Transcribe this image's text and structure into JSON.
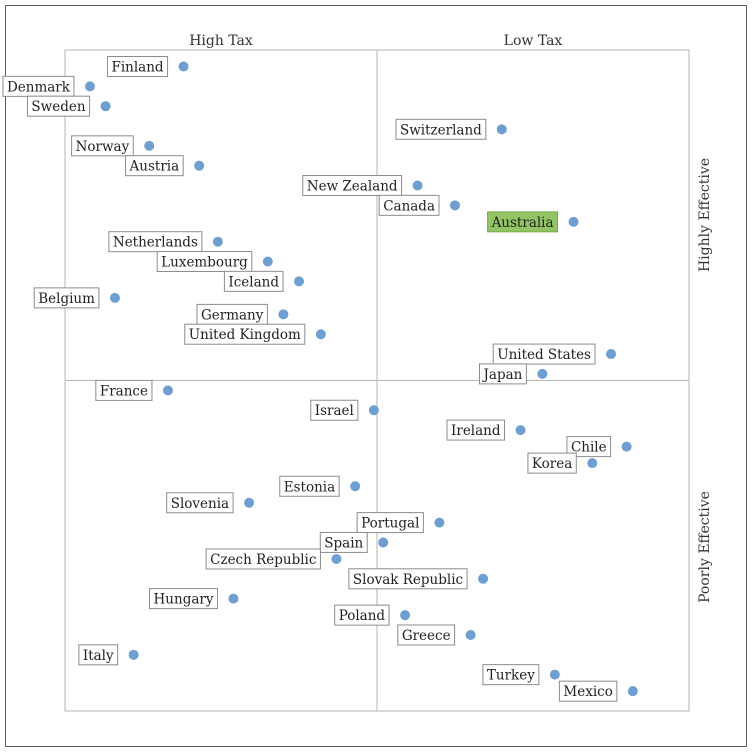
{
  "chart_data": {
    "type": "scatter",
    "title": "",
    "quadrant_labels": {
      "top_left": "High Tax",
      "top_right": "Low Tax",
      "right_top": "Highly Effective",
      "right_bottom": "Poorly Effective"
    },
    "xlim": [
      0,
      100
    ],
    "ylim": [
      0,
      100
    ],
    "grid": false,
    "highlight_color": "#92c463",
    "point_color": "#6f9fd0",
    "points": [
      {
        "name": "Finland",
        "x": 19,
        "y": 97.5
      },
      {
        "name": "Denmark",
        "x": 4,
        "y": 94.5
      },
      {
        "name": "Sweden",
        "x": 6.5,
        "y": 91.5
      },
      {
        "name": "Norway",
        "x": 13.5,
        "y": 85.5
      },
      {
        "name": "Austria",
        "x": 21.5,
        "y": 82.5
      },
      {
        "name": "Switzerland",
        "x": 70,
        "y": 88
      },
      {
        "name": "New Zealand",
        "x": 56.5,
        "y": 79.5
      },
      {
        "name": "Canada",
        "x": 62.5,
        "y": 76.5
      },
      {
        "name": "Australia",
        "x": 81.5,
        "y": 74,
        "highlight": true
      },
      {
        "name": "Netherlands",
        "x": 24.5,
        "y": 71
      },
      {
        "name": "Luxembourg",
        "x": 32.5,
        "y": 68
      },
      {
        "name": "Iceland",
        "x": 37.5,
        "y": 65
      },
      {
        "name": "Belgium",
        "x": 8,
        "y": 62.5
      },
      {
        "name": "Germany",
        "x": 35,
        "y": 60
      },
      {
        "name": "United Kingdom",
        "x": 41,
        "y": 57
      },
      {
        "name": "United States",
        "x": 87.5,
        "y": 54
      },
      {
        "name": "Japan",
        "x": 76.5,
        "y": 51
      },
      {
        "name": "France",
        "x": 16.5,
        "y": 48.5
      },
      {
        "name": "Israel",
        "x": 49.5,
        "y": 45.5
      },
      {
        "name": "Ireland",
        "x": 73,
        "y": 42.5
      },
      {
        "name": "Chile",
        "x": 90,
        "y": 40
      },
      {
        "name": "Korea",
        "x": 84.5,
        "y": 37.5
      },
      {
        "name": "Estonia",
        "x": 46.5,
        "y": 34
      },
      {
        "name": "Slovenia",
        "x": 29.5,
        "y": 31.5
      },
      {
        "name": "Portugal",
        "x": 60,
        "y": 28.5
      },
      {
        "name": "Spain",
        "x": 51,
        "y": 25.5
      },
      {
        "name": "Czech Republic",
        "x": 43.5,
        "y": 23
      },
      {
        "name": "Slovak Republic",
        "x": 67,
        "y": 20
      },
      {
        "name": "Hungary",
        "x": 27,
        "y": 17
      },
      {
        "name": "Poland",
        "x": 54.5,
        "y": 14.5
      },
      {
        "name": "Greece",
        "x": 65,
        "y": 11.5
      },
      {
        "name": "Italy",
        "x": 11,
        "y": 8.5
      },
      {
        "name": "Turkey",
        "x": 78.5,
        "y": 5.5
      },
      {
        "name": "Mexico",
        "x": 91,
        "y": 3
      }
    ]
  }
}
